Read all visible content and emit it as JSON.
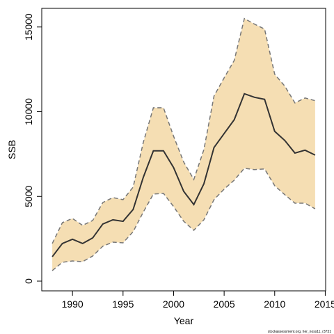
{
  "chart_data": {
    "type": "line_band",
    "xlabel": "Year",
    "ylabel": "SSB",
    "footnote": "stockassessment.org, her_noss11, r3731",
    "x": [
      1988,
      1989,
      1990,
      1991,
      1992,
      1993,
      1994,
      1995,
      1996,
      1997,
      1998,
      1999,
      2000,
      2001,
      2002,
      2003,
      2004,
      2005,
      2006,
      2007,
      2008,
      2009,
      2010,
      2011,
      2012,
      2013,
      2014
    ],
    "values": [
      1440,
      2220,
      2470,
      2220,
      2550,
      3370,
      3620,
      3530,
      4230,
      6120,
      7690,
      7690,
      6700,
      5300,
      4520,
      5750,
      7890,
      8710,
      9530,
      11060,
      10850,
      10730,
      8840,
      8300,
      7560,
      7730,
      7440
    ],
    "lower": [
      620,
      1110,
      1190,
      1150,
      1480,
      2060,
      2300,
      2260,
      2920,
      4070,
      5140,
      5180,
      4400,
      3530,
      3000,
      3620,
      4810,
      5430,
      5960,
      6660,
      6580,
      6620,
      5630,
      5100,
      4600,
      4600,
      4270
    ],
    "upper": [
      2220,
      3450,
      3700,
      3290,
      3580,
      4640,
      4930,
      4810,
      5550,
      8180,
      10230,
      10230,
      8550,
      7030,
      6000,
      7770,
      10930,
      12000,
      13030,
      15500,
      15170,
      14880,
      12210,
      11510,
      10520,
      10810,
      10650
    ],
    "color": "#333333",
    "band_color": "#f5deb3",
    "bound_color": "#777777",
    "xlim": [
      1986.96,
      2015.04
    ],
    "xticks": [
      1990,
      1995,
      2000,
      2005,
      2010,
      2015
    ],
    "ylim": [
      -575,
      16100
    ],
    "yticks": [
      0,
      5000,
      10000,
      15000
    ]
  }
}
